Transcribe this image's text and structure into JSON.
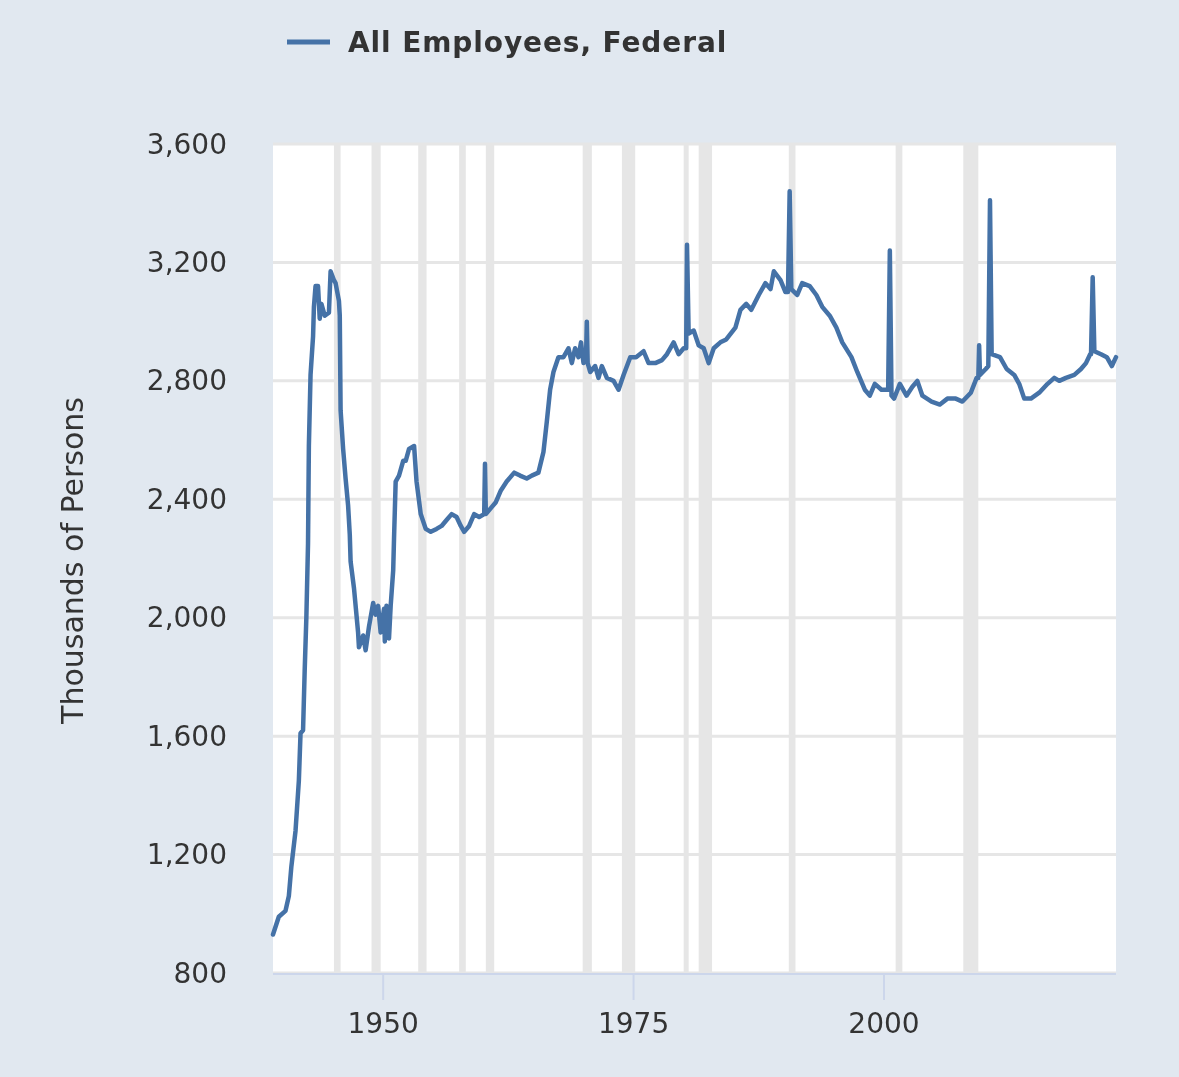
{
  "chart_data": {
    "type": "line",
    "ylabel": "Thousands of Persons",
    "x": [
      "1939-01",
      "1939-08",
      "1940-04",
      "1940-08",
      "1940-11",
      "1941-04",
      "1941-08",
      "1941-10",
      "1942-01",
      "1942-03",
      "1942-05",
      "1942-07",
      "1942-08",
      "1942-10",
      "1943-01",
      "1943-02",
      "1943-04",
      "1943-07",
      "1943-09",
      "1943-11",
      "1944-03",
      "1944-08",
      "1944-10",
      "1945-02",
      "1945-04",
      "1945-08",
      "1945-09",
      "1945-10",
      "1946-01",
      "1946-04",
      "1946-07",
      "1946-09",
      "1946-10",
      "1947-02",
      "1947-07",
      "1947-08",
      "1948-01",
      "1948-04",
      "1948-08",
      "1949-01",
      "1949-04",
      "1949-07",
      "1949-10",
      "1950-02",
      "1950-03",
      "1950-05",
      "1950-08",
      "1950-10",
      "1951-01",
      "1951-02",
      "1951-04",
      "1951-08",
      "1952-01",
      "1952-04",
      "1952-08",
      "1953-02",
      "1953-05",
      "1953-10",
      "1954-04",
      "1954-10",
      "1955-05",
      "1955-11",
      "1956-05",
      "1956-11",
      "1957-05",
      "1957-10",
      "1958-02",
      "1958-08",
      "1959-02",
      "1959-08",
      "1960-02",
      "1960-03",
      "1960-04",
      "1960-10",
      "1961-04",
      "1961-10",
      "1962-05",
      "1963-02",
      "1963-09",
      "1964-05",
      "1964-11",
      "1965-07",
      "1966-01",
      "1966-05",
      "1966-09",
      "1967-01",
      "1967-07",
      "1968-01",
      "1968-07",
      "1968-11",
      "1969-03",
      "1969-07",
      "1969-10",
      "1970-01",
      "1970-04",
      "1970-05",
      "1970-06",
      "1970-09",
      "1971-03",
      "1971-07",
      "1971-11",
      "1972-05",
      "1973-01",
      "1973-07",
      "1974-01",
      "1974-09",
      "1975-04",
      "1976-01",
      "1976-07",
      "1977-03",
      "1977-11",
      "1978-05",
      "1979-01",
      "1979-07",
      "1980-01",
      "1980-04",
      "1980-05",
      "1980-07",
      "1981-01",
      "1981-07",
      "1982-01",
      "1982-07",
      "1983-01",
      "1983-09",
      "1984-04",
      "1985-03",
      "1985-09",
      "1986-04",
      "1986-10",
      "1987-07",
      "1988-03",
      "1988-09",
      "1989-01",
      "1989-09",
      "1990-03",
      "1990-06",
      "1990-08",
      "1990-10",
      "1991-05",
      "1991-11",
      "1992-08",
      "1993-04",
      "1993-11",
      "1994-08",
      "1995-04",
      "1995-11",
      "1996-10",
      "1997-05",
      "1998-02",
      "1998-08",
      "1999-02",
      "1999-10",
      "2000-06",
      "2000-08",
      "2000-10",
      "2001-01",
      "2001-08",
      "2002-04",
      "2002-11",
      "2003-05",
      "2003-11",
      "2004-10",
      "2005-08",
      "2006-05",
      "2007-03",
      "2007-11",
      "2008-09",
      "2009-04",
      "2009-06",
      "2009-07",
      "2009-08",
      "2010-03",
      "2010-06",
      "2010-08",
      "2010-10",
      "2011-08",
      "2012-04",
      "2013-01",
      "2013-07",
      "2014-01",
      "2014-09",
      "2015-07",
      "2016-05",
      "2017-01",
      "2017-07",
      "2018-03",
      "2019-01",
      "2019-09",
      "2020-03",
      "2020-08",
      "2020-09",
      "2020-11",
      "2021-01",
      "2021-09",
      "2022-04",
      "2022-10",
      "2023-03"
    ],
    "series": [
      {
        "name": "All Employees, Federal",
        "color": "#4572a7",
        "values": [
          930,
          990,
          1010,
          1060,
          1160,
          1280,
          1450,
          1610,
          1620,
          1820,
          2000,
          2250,
          2580,
          2820,
          2950,
          3050,
          3120,
          3120,
          3010,
          3060,
          3020,
          3030,
          3170,
          3140,
          3130,
          3070,
          3020,
          2700,
          2570,
          2470,
          2380,
          2280,
          2190,
          2100,
          1950,
          1900,
          1940,
          1890,
          1970,
          2050,
          2010,
          2040,
          1950,
          2030,
          1920,
          2040,
          1930,
          2040,
          2160,
          2270,
          2460,
          2480,
          2530,
          2530,
          2570,
          2580,
          2460,
          2350,
          2300,
          2290,
          2300,
          2310,
          2330,
          2350,
          2340,
          2310,
          2290,
          2310,
          2350,
          2340,
          2350,
          2520,
          2350,
          2370,
          2390,
          2430,
          2460,
          2490,
          2480,
          2470,
          2480,
          2490,
          2560,
          2660,
          2770,
          2830,
          2880,
          2880,
          2910,
          2860,
          2910,
          2880,
          2930,
          2860,
          2870,
          3000,
          2860,
          2830,
          2850,
          2810,
          2850,
          2810,
          2800,
          2770,
          2820,
          2880,
          2880,
          2900,
          2860,
          2860,
          2870,
          2890,
          2930,
          2890,
          2910,
          2910,
          3260,
          2960,
          2970,
          2920,
          2910,
          2860,
          2910,
          2930,
          2940,
          2980,
          3040,
          3060,
          3040,
          3090,
          3130,
          3110,
          3170,
          3140,
          3100,
          3100,
          3440,
          3110,
          3090,
          3130,
          3120,
          3090,
          3050,
          3020,
          2980,
          2930,
          2880,
          2830,
          2770,
          2750,
          2790,
          2770,
          2770,
          3240,
          2750,
          2740,
          2790,
          2750,
          2780,
          2800,
          2750,
          2730,
          2720,
          2740,
          2740,
          2730,
          2760,
          2810,
          2810,
          2920,
          2820,
          2840,
          2850,
          3410,
          2890,
          2880,
          2840,
          2820,
          2790,
          2740,
          2740,
          2760,
          2790,
          2810,
          2800,
          2810,
          2820,
          2840,
          2860,
          2890,
          2890,
          3150,
          2900,
          2890,
          2880,
          2850,
          2880
        ]
      }
    ],
    "xlim": [
      "1939-01",
      "2023-03"
    ],
    "xticks": [
      {
        "value": "1950",
        "label": "1950"
      },
      {
        "value": "1975",
        "label": "1975"
      },
      {
        "value": "2000",
        "label": "2000"
      }
    ],
    "ylim": [
      800,
      3600
    ],
    "yticks": [
      800,
      {
        "value": 1200,
        "label": "1,200"
      },
      {
        "value": 1600,
        "label": "1,600"
      },
      {
        "value": 2000,
        "label": "2,000"
      },
      {
        "value": 2400,
        "label": "2,400"
      },
      {
        "value": 2800,
        "label": "2,800"
      },
      {
        "value": 3200,
        "label": "3,200"
      },
      {
        "value": 3600,
        "label": "3,600"
      }
    ],
    "grid": "y",
    "legend": "top left",
    "bands": [
      {
        "axis": "x",
        "from": "1945-02",
        "to": "1945-10",
        "color": "#e6e6e6"
      },
      {
        "axis": "x",
        "from": "1948-11",
        "to": "1949-10",
        "color": "#e6e6e6"
      },
      {
        "axis": "x",
        "from": "1953-07",
        "to": "1954-05",
        "color": "#e6e6e6"
      },
      {
        "axis": "x",
        "from": "1957-08",
        "to": "1958-04",
        "color": "#e6e6e6"
      },
      {
        "axis": "x",
        "from": "1960-04",
        "to": "1961-02",
        "color": "#e6e6e6"
      },
      {
        "axis": "x",
        "from": "1969-12",
        "to": "1970-11",
        "color": "#e6e6e6"
      },
      {
        "axis": "x",
        "from": "1973-11",
        "to": "1975-03",
        "color": "#e6e6e6"
      },
      {
        "axis": "x",
        "from": "1980-01",
        "to": "1980-07",
        "color": "#e6e6e6"
      },
      {
        "axis": "x",
        "from": "1981-07",
        "to": "1982-11",
        "color": "#e6e6e6"
      },
      {
        "axis": "x",
        "from": "1990-07",
        "to": "1991-03",
        "color": "#e6e6e6"
      },
      {
        "axis": "x",
        "from": "2001-03",
        "to": "2001-11",
        "color": "#e6e6e6"
      },
      {
        "axis": "x",
        "from": "2007-12",
        "to": "2009-06",
        "color": "#e6e6e6"
      }
    ]
  }
}
